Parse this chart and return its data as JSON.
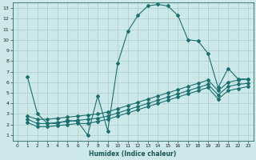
{
  "xlabel": "Humidex (Indice chaleur)",
  "bg_color": "#cce8e8",
  "line_color": "#1a7070",
  "grid_color": "#aacccc",
  "xlim": [
    -0.5,
    23.5
  ],
  "ylim": [
    0.5,
    13.5
  ],
  "xticks": [
    0,
    1,
    2,
    3,
    4,
    5,
    6,
    7,
    8,
    9,
    10,
    11,
    12,
    13,
    14,
    15,
    16,
    17,
    18,
    19,
    20,
    21,
    22,
    23
  ],
  "yticks": [
    1,
    2,
    3,
    4,
    5,
    6,
    7,
    8,
    9,
    10,
    11,
    12,
    13
  ],
  "line1_x": [
    1,
    2,
    3,
    4,
    5,
    6,
    7,
    8,
    9,
    10,
    11,
    12,
    13,
    14,
    15,
    16,
    17,
    18,
    19,
    20,
    21,
    22,
    23
  ],
  "line1_y": [
    6.5,
    3.0,
    2.1,
    2.1,
    2.4,
    2.3,
    1.0,
    4.7,
    1.4,
    7.8,
    10.8,
    12.3,
    13.2,
    13.35,
    13.2,
    12.3,
    10.0,
    9.9,
    8.7,
    5.5,
    7.3,
    6.3,
    6.3
  ],
  "line2_x": [
    1,
    2,
    3,
    4,
    5,
    6,
    7,
    8,
    9,
    10,
    11,
    12,
    13,
    14,
    15,
    16,
    17,
    18,
    19,
    20,
    21,
    22,
    23
  ],
  "line2_y": [
    2.8,
    2.5,
    2.5,
    2.6,
    2.7,
    2.8,
    2.9,
    3.0,
    3.2,
    3.5,
    3.8,
    4.1,
    4.4,
    4.7,
    5.0,
    5.3,
    5.6,
    5.9,
    6.2,
    5.2,
    6.0,
    6.2,
    6.3
  ],
  "line3_x": [
    1,
    2,
    3,
    4,
    5,
    6,
    7,
    8,
    9,
    10,
    11,
    12,
    13,
    14,
    15,
    16,
    17,
    18,
    19,
    20,
    21,
    22,
    23
  ],
  "line3_y": [
    2.5,
    2.1,
    2.1,
    2.2,
    2.3,
    2.4,
    2.5,
    2.6,
    2.8,
    3.1,
    3.4,
    3.7,
    4.0,
    4.3,
    4.6,
    4.9,
    5.2,
    5.5,
    5.8,
    4.8,
    5.6,
    5.8,
    5.9
  ],
  "line4_x": [
    1,
    2,
    3,
    4,
    5,
    6,
    7,
    8,
    9,
    10,
    11,
    12,
    13,
    14,
    15,
    16,
    17,
    18,
    19,
    20,
    21,
    22,
    23
  ],
  "line4_y": [
    2.2,
    1.8,
    1.8,
    1.9,
    2.0,
    2.1,
    2.1,
    2.3,
    2.5,
    2.8,
    3.1,
    3.4,
    3.7,
    4.0,
    4.3,
    4.6,
    4.9,
    5.2,
    5.5,
    4.4,
    5.2,
    5.4,
    5.6
  ]
}
